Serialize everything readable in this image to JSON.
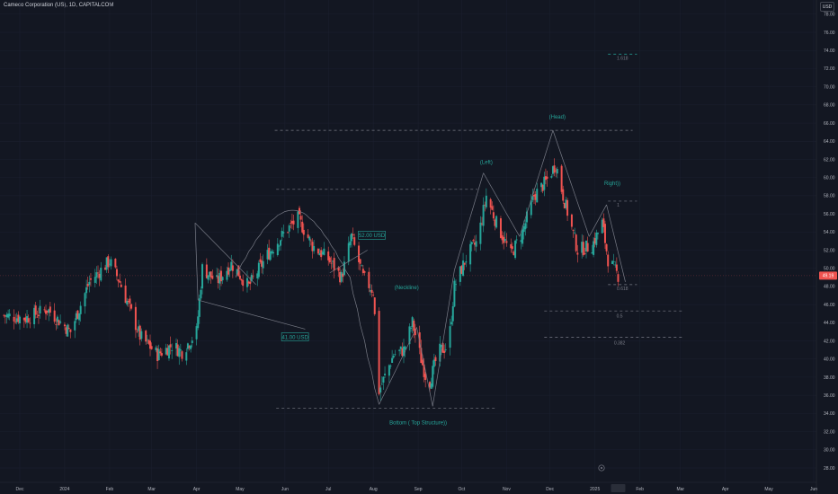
{
  "header": {
    "title": "Cameco Corporation (US), 1D, CAPITALCOM",
    "currency": "USD"
  },
  "colors": {
    "background": "#131722",
    "up": "#26a69a",
    "down": "#ef5350",
    "drawing": "#787b86",
    "label": "#26a69a",
    "price_badge": "#ef5350"
  },
  "chart_data": {
    "type": "candlestick",
    "y_ticks": [
      "78.00",
      "76.00",
      "74.00",
      "72.00",
      "70.00",
      "68.00",
      "66.00",
      "64.00",
      "62.00",
      "60.00",
      "58.00",
      "56.00",
      "54.00",
      "52.00",
      "50.00",
      "48.00",
      "46.00",
      "44.00",
      "42.00",
      "40.00",
      "38.00",
      "36.00",
      "34.00",
      "32.00",
      "30.00",
      "28.00"
    ],
    "ylim": [
      26.5,
      79.5
    ],
    "x_ticks": [
      {
        "label": "Dec",
        "date": "2023-12-01"
      },
      {
        "label": "2024",
        "date": "2024-01-01"
      },
      {
        "label": "Feb",
        "date": "2024-02-01"
      },
      {
        "label": "Mar",
        "date": "2024-03-01"
      },
      {
        "label": "Apr",
        "date": "2024-04-01"
      },
      {
        "label": "May",
        "date": "2024-05-01"
      },
      {
        "label": "Jun",
        "date": "2024-06-01"
      },
      {
        "label": "Jul",
        "date": "2024-07-01"
      },
      {
        "label": "Aug",
        "date": "2024-08-01"
      },
      {
        "label": "Sep",
        "date": "2024-09-01"
      },
      {
        "label": "Oct",
        "date": "2024-10-01"
      },
      {
        "label": "Nov",
        "date": "2024-11-01"
      },
      {
        "label": "Dec",
        "date": "2024-12-01"
      },
      {
        "label": "2025",
        "date": "2025-01-01"
      },
      {
        "label": "Feb",
        "date": "2025-02-01"
      },
      {
        "label": "Mar",
        "date": "2025-03-01"
      },
      {
        "label": "Apr",
        "date": "2025-04-01"
      },
      {
        "label": "May",
        "date": "2025-05-01"
      },
      {
        "label": "Jun",
        "date": "2025-06-01"
      }
    ],
    "last_price": "49.19",
    "last_date": "2025-01-17",
    "close_path": [
      [
        "2023-11-20",
        44.8
      ],
      [
        "2023-12-05",
        44.5
      ],
      [
        "2023-12-20",
        45.5
      ],
      [
        "2024-01-05",
        43.0
      ],
      [
        "2024-01-18",
        48.5
      ],
      [
        "2024-02-01",
        50.8
      ],
      [
        "2024-02-08",
        48.5
      ],
      [
        "2024-02-22",
        42.5
      ],
      [
        "2024-03-05",
        40.5
      ],
      [
        "2024-03-15",
        41.5
      ],
      [
        "2024-03-22",
        40.8
      ],
      [
        "2024-04-01",
        43.0
      ],
      [
        "2024-04-05",
        50.0
      ],
      [
        "2024-04-15",
        48.5
      ],
      [
        "2024-04-25",
        50.5
      ],
      [
        "2024-05-07",
        48.0
      ],
      [
        "2024-05-20",
        51.5
      ],
      [
        "2024-06-01",
        54.0
      ],
      [
        "2024-06-10",
        55.5
      ],
      [
        "2024-06-20",
        52.5
      ],
      [
        "2024-07-01",
        51.0
      ],
      [
        "2024-07-10",
        49.0
      ],
      [
        "2024-07-17",
        53.5
      ],
      [
        "2024-07-25",
        49.0
      ],
      [
        "2024-08-01",
        47.5
      ],
      [
        "2024-08-05",
        36.5
      ],
      [
        "2024-08-15",
        40.5
      ],
      [
        "2024-08-22",
        41.0
      ],
      [
        "2024-08-28",
        44.0
      ],
      [
        "2024-09-03",
        40.0
      ],
      [
        "2024-09-08",
        37.0
      ],
      [
        "2024-09-15",
        40.8
      ],
      [
        "2024-09-22",
        41.5
      ],
      [
        "2024-09-26",
        48.0
      ],
      [
        "2024-10-05",
        51.5
      ],
      [
        "2024-10-12",
        53.0
      ],
      [
        "2024-10-18",
        58.0
      ],
      [
        "2024-10-25",
        55.0
      ],
      [
        "2024-11-04",
        51.5
      ],
      [
        "2024-11-12",
        54.0
      ],
      [
        "2024-11-20",
        58.0
      ],
      [
        "2024-11-28",
        59.5
      ],
      [
        "2024-12-05",
        61.5
      ],
      [
        "2024-12-10",
        58.0
      ],
      [
        "2024-12-20",
        52.0
      ],
      [
        "2024-12-30",
        52.5
      ],
      [
        "2025-01-06",
        55.0
      ],
      [
        "2025-01-10",
        51.0
      ],
      [
        "2025-01-17",
        49.2
      ]
    ],
    "annotations": {
      "head": "(Head)",
      "left": "(Left)",
      "right": "Right))",
      "neckline": "(Neckline)",
      "bottom": "Bottom ( Top Structure))",
      "price_52": "52.00 USD",
      "price_41": "41.00 USD",
      "fib_1618": "1.618",
      "fib_0618": "0.618",
      "fib_05": "0.5",
      "fib_0382": "0.382",
      "fib_1": "1"
    },
    "fib_levels": [
      {
        "label": "1.618",
        "price": 73.6
      },
      {
        "label": "1",
        "price": 57.4
      },
      {
        "label": "0.618",
        "price": 48.2
      },
      {
        "label": "0.5",
        "price": 45.3
      },
      {
        "label": "0.382",
        "price": 42.4
      }
    ],
    "levels": [
      {
        "name": "head-level",
        "price": 65.2
      },
      {
        "name": "shoulder-level",
        "price": 58.7
      },
      {
        "name": "bottom-level",
        "price": 34.6
      }
    ]
  }
}
